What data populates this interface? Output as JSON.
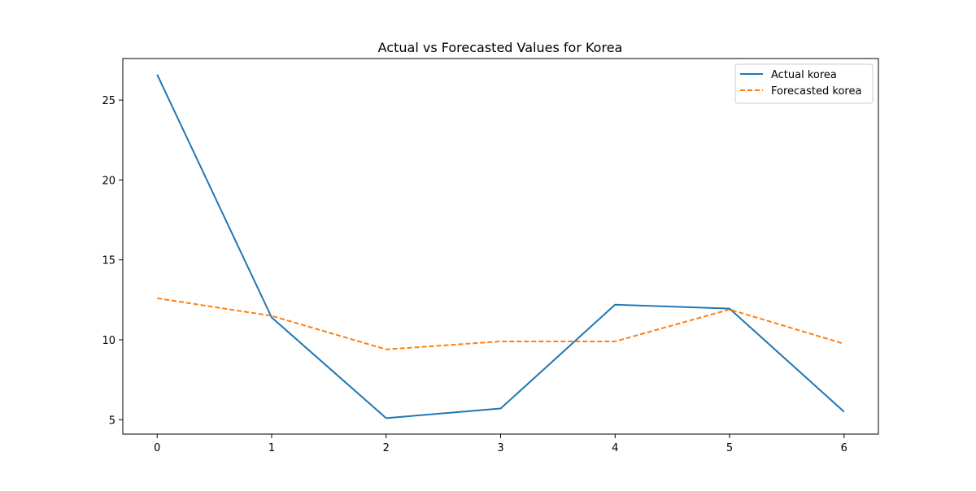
{
  "chart_data": {
    "type": "line",
    "title": "Actual vs Forecasted Values for Korea",
    "xlabel": "",
    "ylabel": "",
    "x": [
      0,
      1,
      2,
      3,
      4,
      5,
      6
    ],
    "xticks": [
      "0",
      "1",
      "2",
      "3",
      "4",
      "5",
      "6"
    ],
    "yticks": [
      "5",
      "10",
      "15",
      "20",
      "25"
    ],
    "xlim": [
      -0.3,
      6.3
    ],
    "ylim": [
      4.1,
      27.6
    ],
    "grid": false,
    "legend_position": "top-right",
    "series": [
      {
        "name": "Actual korea",
        "color": "#1f77b4",
        "style": "solid",
        "values": [
          26.6,
          11.4,
          5.1,
          5.7,
          12.2,
          11.95,
          5.5
        ]
      },
      {
        "name": "Forecasted korea",
        "color": "#ff7f0e",
        "style": "dashed",
        "values": [
          12.6,
          11.5,
          9.4,
          9.9,
          9.9,
          11.9,
          9.75
        ]
      }
    ]
  }
}
